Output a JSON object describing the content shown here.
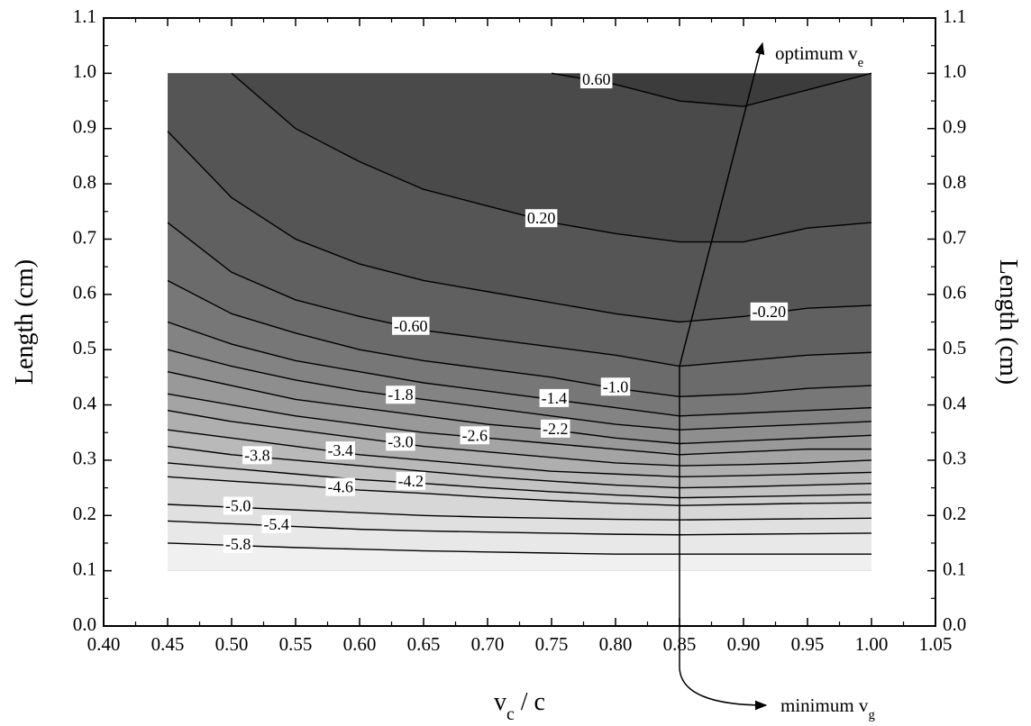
{
  "chart_data": {
    "type": "contour",
    "xlabel": {
      "main": "v",
      "sub": "c",
      "rest": " / c"
    },
    "ylabel": "Length (cm)",
    "annotations": [
      {
        "main": "optimum v",
        "sub": "e"
      },
      {
        "main": "minimum v",
        "sub": "g"
      }
    ],
    "xlim": [
      0.4,
      1.05
    ],
    "ylim": [
      0.0,
      1.1
    ],
    "xticks": [
      {
        "value": 0.4,
        "label": "0.40"
      },
      0.45,
      {
        "value": 0.5,
        "label": "0.50"
      },
      0.55,
      {
        "value": 0.6,
        "label": "0.60"
      },
      0.65,
      {
        "value": 0.7,
        "label": "0.70"
      },
      0.75,
      {
        "value": 0.8,
        "label": "0.80"
      },
      0.85,
      {
        "value": 0.9,
        "label": "0.90"
      },
      0.95,
      {
        "value": 1.0,
        "label": "1.00"
      },
      1.05
    ],
    "yticks": [
      {
        "value": 0.0,
        "label": "0.0"
      },
      0.1,
      0.2,
      0.3,
      0.4,
      0.5,
      0.6,
      0.7,
      0.8,
      0.9,
      {
        "value": 1.0,
        "label": "1.0"
      },
      1.1
    ],
    "field_ylim": [
      0.1,
      1.0
    ],
    "x": [
      0.45,
      0.5,
      0.55,
      0.6,
      0.65,
      0.7,
      0.75,
      0.8,
      0.85,
      0.9,
      0.95,
      1.0
    ],
    "fill_colors": [
      "#3c3c3c",
      "#4a4a4a",
      "#555555",
      "#606060",
      "#6b6b6b",
      "#777777",
      "#838383",
      "#8e8e8e",
      "#999999",
      "#a4a4a4",
      "#afafaf",
      "#b9b9b9",
      "#c3c3c3",
      "#cdcdcd",
      "#d7d7d7",
      "#e0e0e0",
      "#e8e8e8",
      "#f0f0f0"
    ],
    "line_color": "#000000",
    "contours": [
      {
        "level": {
          "value": 0.6,
          "label": "0.60"
        },
        "y": [
          null,
          null,
          null,
          null,
          null,
          null,
          1.0,
          0.98,
          0.95,
          0.94,
          0.97,
          1.0
        ]
      },
      {
        "level": {
          "value": 0.2,
          "label": "0.20"
        },
        "y": [
          null,
          1.0,
          0.9,
          0.84,
          0.79,
          0.76,
          0.73,
          0.71,
          0.695,
          0.695,
          0.72,
          0.73
        ]
      },
      {
        "level": {
          "value": -0.2,
          "label": "-0.20"
        },
        "y": [
          0.895,
          0.775,
          0.7,
          0.655,
          0.625,
          0.605,
          0.585,
          0.565,
          0.55,
          0.56,
          0.575,
          0.58
        ]
      },
      {
        "level": {
          "value": -0.6,
          "label": "-0.60"
        },
        "y": [
          0.73,
          0.64,
          0.59,
          0.56,
          0.535,
          0.52,
          0.505,
          0.49,
          0.47,
          0.48,
          0.49,
          0.495
        ]
      },
      {
        "level": {
          "value": -1.0,
          "label": "-1.0"
        },
        "y": [
          0.625,
          0.565,
          0.53,
          0.5,
          0.48,
          0.465,
          0.45,
          0.43,
          0.415,
          0.42,
          0.43,
          0.435
        ]
      },
      {
        "level": -1.4,
        "y": [
          0.55,
          0.51,
          0.48,
          0.46,
          0.44,
          0.425,
          0.41,
          0.395,
          0.38,
          0.385,
          0.39,
          0.395
        ]
      },
      {
        "level": -1.8,
        "y": [
          0.5,
          0.47,
          0.445,
          0.425,
          0.41,
          0.395,
          0.38,
          0.365,
          0.355,
          0.36,
          0.365,
          0.37
        ]
      },
      {
        "level": -2.2,
        "y": [
          0.46,
          0.435,
          0.41,
          0.395,
          0.38,
          0.365,
          0.355,
          0.34,
          0.33,
          0.335,
          0.34,
          0.345
        ]
      },
      {
        "level": -2.6,
        "y": [
          0.42,
          0.4,
          0.38,
          0.365,
          0.35,
          0.34,
          0.33,
          0.32,
          0.31,
          0.315,
          0.32,
          0.32
        ]
      },
      {
        "level": {
          "value": -3.0,
          "label": "-3.0"
        },
        "y": [
          0.39,
          0.37,
          0.355,
          0.34,
          0.325,
          0.315,
          0.305,
          0.295,
          0.29,
          0.292,
          0.295,
          0.3
        ]
      },
      {
        "level": -3.4,
        "y": [
          0.355,
          0.34,
          0.325,
          0.31,
          0.3,
          0.29,
          0.28,
          0.275,
          0.27,
          0.272,
          0.275,
          0.278
        ]
      },
      {
        "level": -3.8,
        "y": [
          0.325,
          0.31,
          0.3,
          0.29,
          0.28,
          0.27,
          0.262,
          0.255,
          0.25,
          0.252,
          0.255,
          0.258
        ]
      },
      {
        "level": -4.2,
        "y": [
          0.295,
          0.285,
          0.275,
          0.265,
          0.258,
          0.25,
          0.243,
          0.237,
          0.232,
          0.234,
          0.236,
          0.238
        ]
      },
      {
        "level": -4.6,
        "y": [
          0.27,
          0.262,
          0.255,
          0.246,
          0.24,
          0.233,
          0.227,
          0.222,
          0.218,
          0.22,
          0.222,
          0.223
        ]
      },
      {
        "level": {
          "value": -5.0,
          "label": "-5.0"
        },
        "y": [
          0.22,
          0.215,
          0.21,
          0.205,
          0.2,
          0.197,
          0.195,
          0.193,
          0.192,
          0.193,
          0.194,
          0.195
        ]
      },
      {
        "level": -5.4,
        "y": [
          0.19,
          0.185,
          0.18,
          0.175,
          0.172,
          0.17,
          0.168,
          0.166,
          0.165,
          0.166,
          0.167,
          0.168
        ]
      },
      {
        "level": -5.8,
        "y": [
          0.15,
          0.146,
          0.142,
          0.139,
          0.136,
          0.134,
          0.132,
          0.13,
          0.13,
          0.13,
          0.13,
          0.13
        ]
      }
    ]
  }
}
